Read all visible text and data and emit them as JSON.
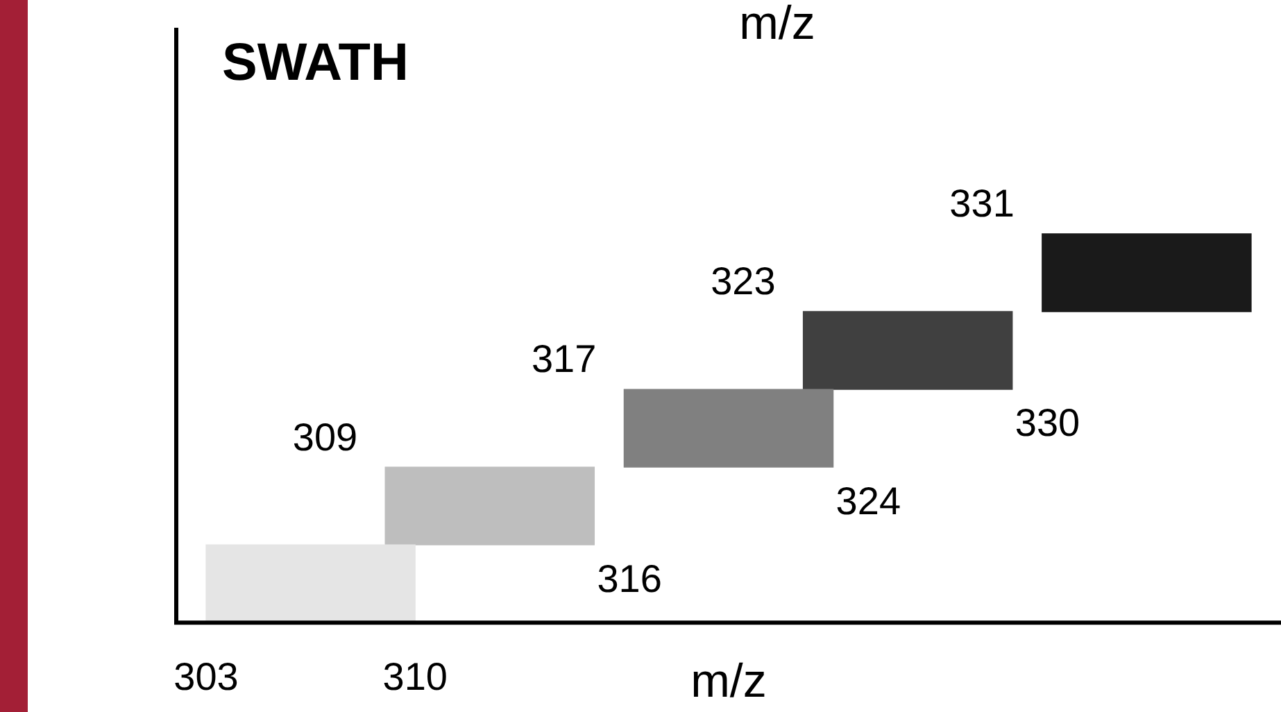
{
  "chart_data": {
    "type": "bar",
    "orientation": "horizontal",
    "title": "SWATH",
    "xlabel": "m/z",
    "categories": [
      null,
      null,
      null,
      null,
      null
    ],
    "base": [
      331,
      323,
      317,
      309,
      303
    ],
    "values": [
      7,
      7,
      7,
      7,
      7
    ],
    "colors": [
      "#1a1a1a",
      "#404040",
      "#808080",
      "#bebebe",
      "#e5e5e5"
    ],
    "xlim": [
      302,
      339
    ],
    "xticks": [
      303,
      310
    ],
    "tick_labels": "x",
    "grid": false,
    "legend": false,
    "annotations": [
      "331",
      "323",
      "330",
      "317",
      "324",
      "309",
      "316",
      "m/z"
    ]
  }
}
